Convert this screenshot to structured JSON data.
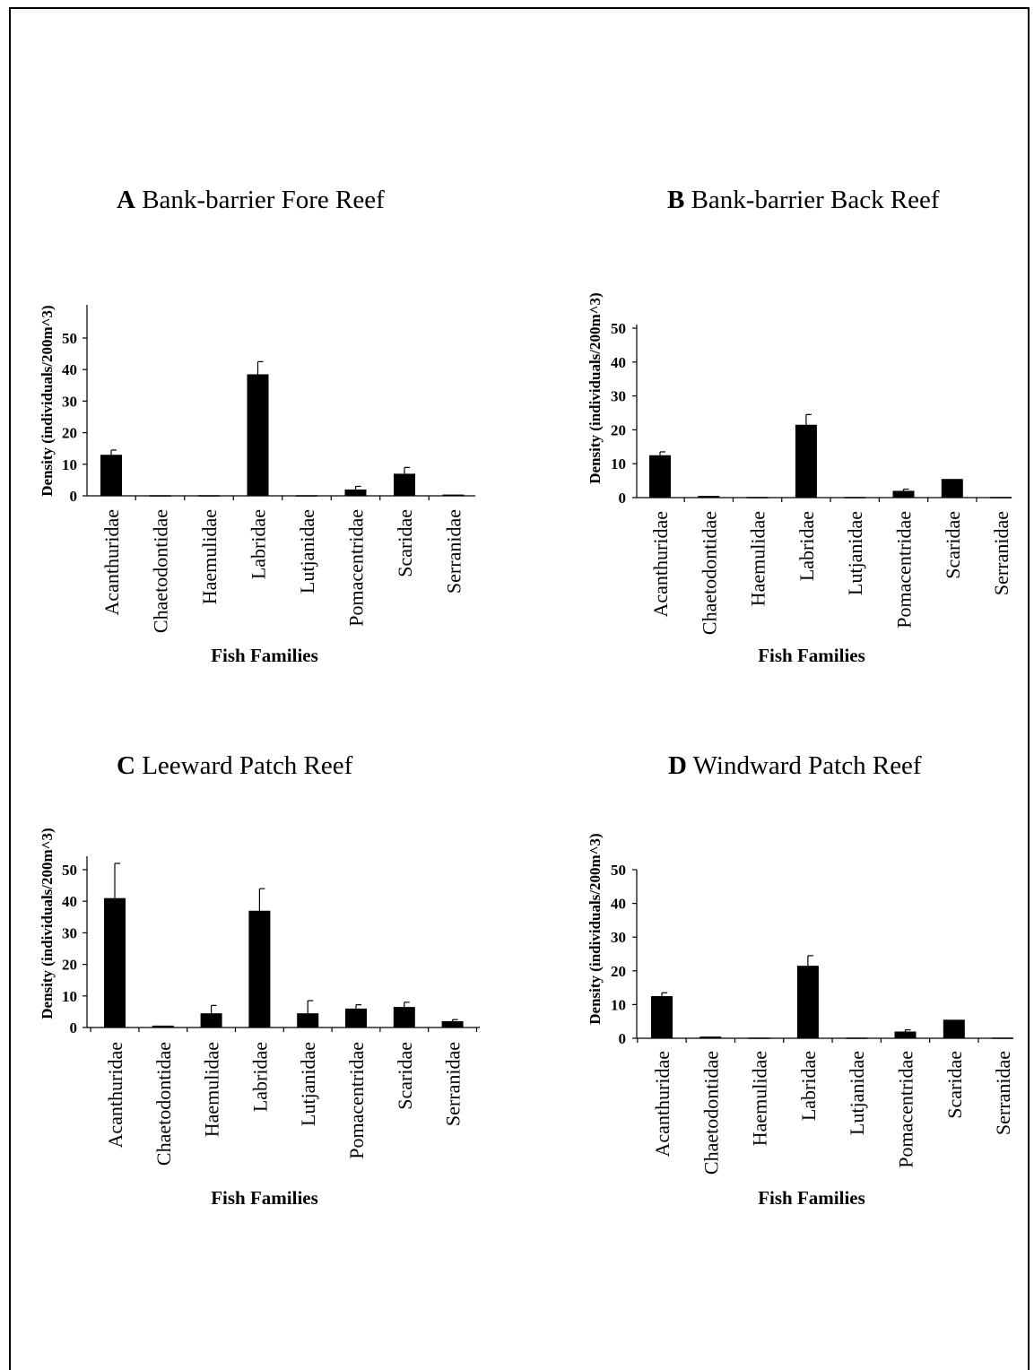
{
  "chart_data": [
    {
      "type": "bar",
      "panel": "A",
      "title": "Bank-barrier Fore Reef",
      "xlabel": "Fish Families",
      "ylabel": "Density (individuals/200m^3)",
      "ylim": [
        0,
        50
      ],
      "yticks": [
        0,
        10,
        20,
        30,
        40,
        50
      ],
      "categories": [
        "Acanthuridae",
        "Chaetodontidae",
        "Haemulidae",
        "Labridae",
        "Lutjanidae",
        "Pomacentridae",
        "Scaridae",
        "Serranidae"
      ],
      "values": [
        13,
        0.2,
        0.2,
        38.5,
        0.2,
        2,
        7,
        0.4
      ],
      "errors": [
        1.5,
        0,
        0,
        4,
        0,
        1,
        2,
        0
      ]
    },
    {
      "type": "bar",
      "panel": "B",
      "title": "Bank-barrier Back Reef",
      "xlabel": "Fish Families",
      "ylabel": "Density (individuals/200m^3)",
      "ylim": [
        0,
        50
      ],
      "yticks": [
        0,
        10,
        20,
        30,
        40,
        50
      ],
      "categories": [
        "Acanthuridae",
        "Chaetodontidae",
        "Haemulidae",
        "Labridae",
        "Lutjanidae",
        "Pomacentridae",
        "Scaridae",
        "Serranidae"
      ],
      "values": [
        12.5,
        0.5,
        0.2,
        21.5,
        0.2,
        2,
        5.5,
        0.2
      ],
      "errors": [
        1,
        0,
        0,
        3,
        0,
        0.5,
        0,
        0
      ]
    },
    {
      "type": "bar",
      "panel": "C",
      "title": "Leeward Patch Reef",
      "xlabel": "Fish Families",
      "ylabel": "Density (individuals/200m^3)",
      "ylim": [
        0,
        50
      ],
      "yticks": [
        0,
        10,
        20,
        30,
        40,
        50
      ],
      "categories": [
        "Acanthuridae",
        "Chaetodontidae",
        "Haemulidae",
        "Labridae",
        "Lutjanidae",
        "Pomacentridae",
        "Scaridae",
        "Serranidae"
      ],
      "values": [
        41,
        0.6,
        4.5,
        37,
        4.5,
        6,
        6.5,
        2
      ],
      "errors": [
        11,
        0,
        2.5,
        7,
        4,
        1.2,
        1.5,
        0.5
      ]
    },
    {
      "type": "bar",
      "panel": "D",
      "title": "Windward Patch Reef",
      "xlabel": "Fish Families",
      "ylabel": "Density (individuals/200m^3)",
      "ylim": [
        0,
        50
      ],
      "yticks": [
        0,
        10,
        20,
        30,
        40,
        50
      ],
      "categories": [
        "Acanthuridae",
        "Chaetodontidae",
        "Haemulidae",
        "Labridae",
        "Lutjanidae",
        "Pomacentridae",
        "Scaridae",
        "Serranidae"
      ],
      "values": [
        12.5,
        0.5,
        0.2,
        21.5,
        0.2,
        2,
        5.5,
        0.2
      ],
      "errors": [
        1,
        0,
        0,
        3,
        0,
        0.5,
        0,
        0
      ]
    }
  ]
}
